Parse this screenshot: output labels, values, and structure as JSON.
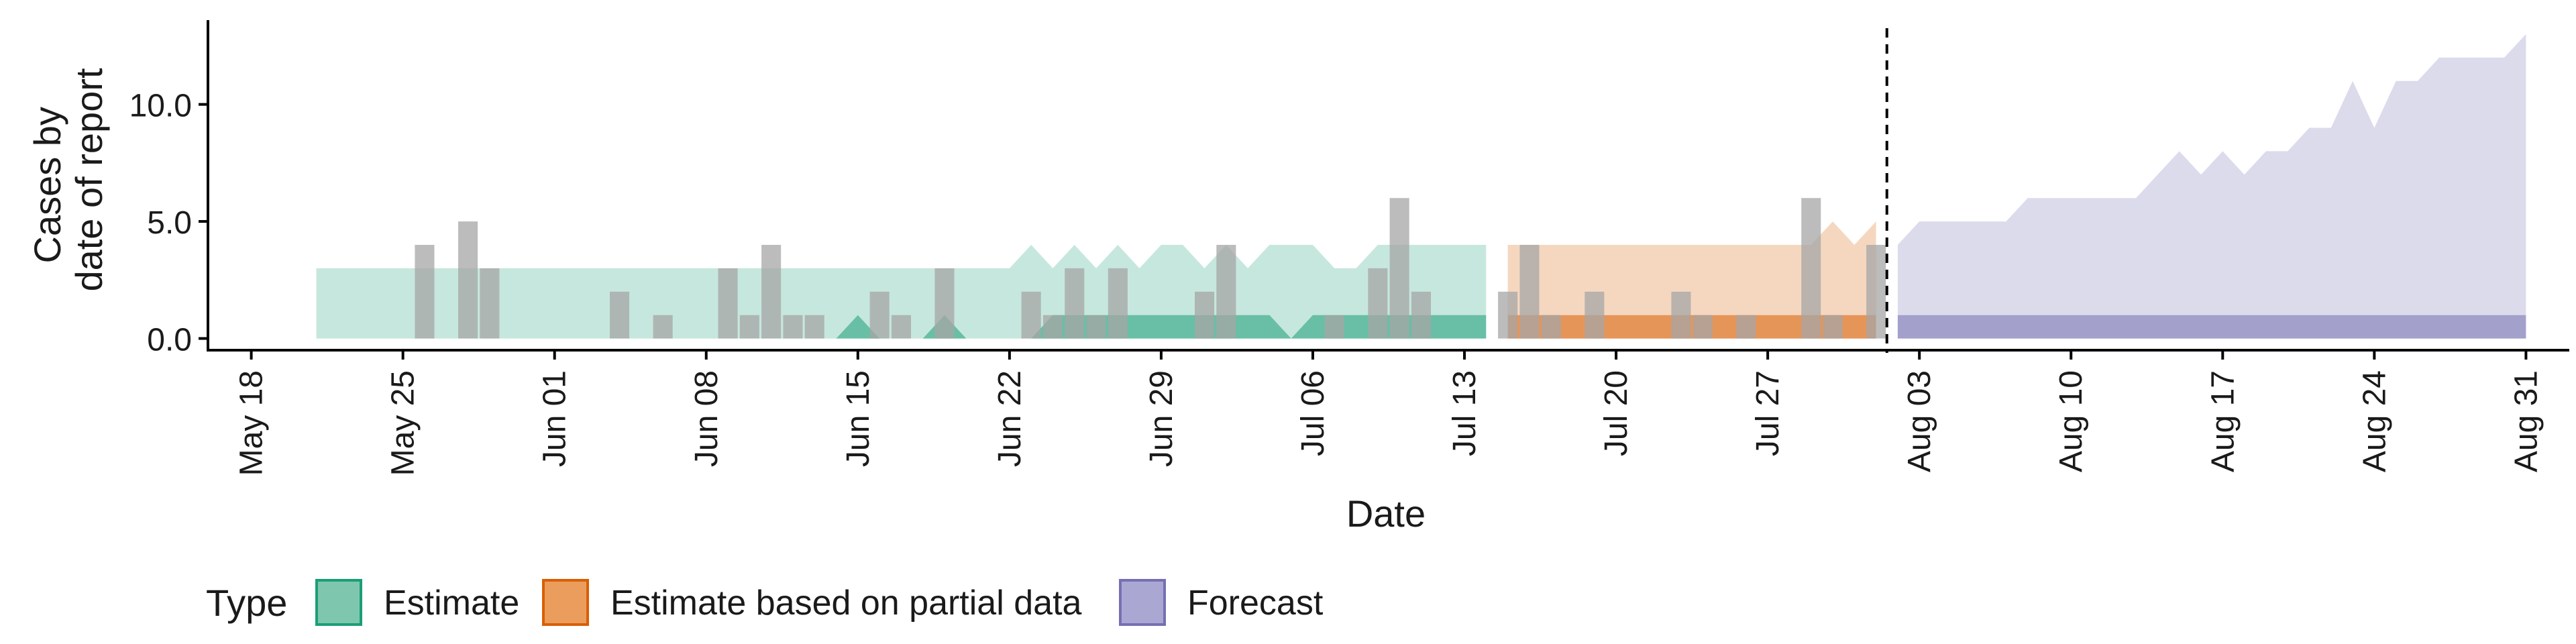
{
  "chart_data": {
    "type": "area",
    "xlabel": "Date",
    "ylabel_lines": [
      "Cases by",
      "date of report"
    ],
    "x_ticks": [
      "May 18",
      "May 25",
      "Jun 01",
      "Jun 08",
      "Jun 15",
      "Jun 22",
      "Jun 29",
      "Jul 06",
      "Jul 13",
      "Jul 20",
      "Jul 27",
      "Aug 03",
      "Aug 10",
      "Aug 17",
      "Aug 24",
      "Aug 31"
    ],
    "y_ticks": [
      "0.0",
      "5.0",
      "10.0"
    ],
    "ylim": [
      -0.5,
      13.6
    ],
    "xlim": [
      "2020-05-16",
      "2020-09-02"
    ],
    "forecast_date": "2020-08-01",
    "legend": {
      "title": "Type",
      "position": "bottom-left",
      "items": [
        {
          "label": "Estimate",
          "fill": "#7fc6ae",
          "stroke": "#1b9e77"
        },
        {
          "label": "Estimate based on partial data",
          "fill": "#eb9d5e",
          "stroke": "#d95f02"
        },
        {
          "label": "Forecast",
          "fill": "#aaa7d3",
          "stroke": "#7570b3"
        }
      ]
    },
    "series": [
      {
        "name": "Estimate",
        "color": "#1b9e77",
        "x": [
          "2020-05-21",
          "2020-05-22",
          "2020-05-23",
          "2020-05-24",
          "2020-05-25",
          "2020-05-26",
          "2020-05-27",
          "2020-05-28",
          "2020-05-29",
          "2020-05-30",
          "2020-05-31",
          "2020-06-01",
          "2020-06-02",
          "2020-06-03",
          "2020-06-04",
          "2020-06-05",
          "2020-06-06",
          "2020-06-07",
          "2020-06-08",
          "2020-06-09",
          "2020-06-10",
          "2020-06-11",
          "2020-06-12",
          "2020-06-13",
          "2020-06-14",
          "2020-06-15",
          "2020-06-16",
          "2020-06-17",
          "2020-06-18",
          "2020-06-19",
          "2020-06-20",
          "2020-06-21",
          "2020-06-22",
          "2020-06-23",
          "2020-06-24",
          "2020-06-25",
          "2020-06-26",
          "2020-06-27",
          "2020-06-28",
          "2020-06-29",
          "2020-06-30",
          "2020-07-01",
          "2020-07-02",
          "2020-07-03",
          "2020-07-04",
          "2020-07-05",
          "2020-07-06",
          "2020-07-07",
          "2020-07-08",
          "2020-07-09",
          "2020-07-10",
          "2020-07-11",
          "2020-07-12",
          "2020-07-13",
          "2020-07-14"
        ],
        "upper_90": [
          3,
          3,
          3,
          3,
          3,
          3,
          3,
          3,
          3,
          3,
          3,
          3,
          3,
          3,
          3,
          3,
          3,
          3,
          3,
          3,
          3,
          3,
          3,
          3,
          3,
          3,
          3,
          3,
          3,
          3,
          3,
          3,
          3,
          4,
          3,
          4,
          3,
          4,
          3,
          4,
          4,
          3,
          4,
          3,
          4,
          4,
          4,
          3,
          3,
          4,
          4,
          4,
          4,
          4,
          4
        ],
        "lower_90": [
          0,
          0,
          0,
          0,
          0,
          0,
          0,
          0,
          0,
          0,
          0,
          0,
          0,
          0,
          0,
          0,
          0,
          0,
          0,
          0,
          0,
          0,
          0,
          0,
          0,
          0,
          0,
          0,
          0,
          0,
          0,
          0,
          0,
          0,
          0,
          0,
          0,
          0,
          0,
          0,
          0,
          0,
          0,
          0,
          0,
          0,
          0,
          0,
          0,
          0,
          0,
          0,
          0,
          0,
          0
        ],
        "upper_50": [
          0,
          0,
          0,
          0,
          0,
          0,
          0,
          0,
          0,
          0,
          0,
          0,
          0,
          0,
          0,
          0,
          0,
          0,
          0,
          0,
          0,
          0,
          0,
          0,
          0,
          1,
          0,
          0,
          0,
          1,
          0,
          0,
          0,
          0,
          1,
          1,
          1,
          1,
          1,
          1,
          1,
          1,
          1,
          1,
          1,
          0,
          1,
          1,
          1,
          1,
          1,
          1,
          1,
          1,
          1
        ],
        "lower_50": [
          0,
          0,
          0,
          0,
          0,
          0,
          0,
          0,
          0,
          0,
          0,
          0,
          0,
          0,
          0,
          0,
          0,
          0,
          0,
          0,
          0,
          0,
          0,
          0,
          0,
          0,
          0,
          0,
          0,
          0,
          0,
          0,
          0,
          0,
          0,
          0,
          0,
          0,
          0,
          0,
          0,
          0,
          0,
          0,
          0,
          0,
          0,
          0,
          0,
          0,
          0,
          0,
          0,
          0,
          0
        ]
      },
      {
        "name": "Estimate based on partial data",
        "color": "#d95f02",
        "x": [
          "2020-07-15",
          "2020-07-16",
          "2020-07-17",
          "2020-07-18",
          "2020-07-19",
          "2020-07-20",
          "2020-07-21",
          "2020-07-22",
          "2020-07-23",
          "2020-07-24",
          "2020-07-25",
          "2020-07-26",
          "2020-07-27",
          "2020-07-28",
          "2020-07-29",
          "2020-07-30",
          "2020-07-31",
          "2020-08-01"
        ],
        "upper_90": [
          4,
          4,
          4,
          4,
          4,
          4,
          4,
          4,
          4,
          4,
          4,
          4,
          4,
          4,
          4,
          5,
          4,
          5
        ],
        "lower_90": [
          0,
          0,
          0,
          0,
          0,
          0,
          0,
          0,
          0,
          0,
          0,
          0,
          0,
          0,
          0,
          0,
          0,
          0
        ],
        "upper_50": [
          1,
          1,
          1,
          1,
          1,
          1,
          1,
          1,
          1,
          1,
          1,
          1,
          1,
          1,
          1,
          1,
          1,
          1
        ],
        "lower_50": [
          0,
          0,
          0,
          0,
          0,
          0,
          0,
          0,
          0,
          0,
          0,
          0,
          0,
          0,
          0,
          0,
          0,
          0
        ]
      },
      {
        "name": "Forecast",
        "color": "#7570b3",
        "x": [
          "2020-08-02",
          "2020-08-03",
          "2020-08-04",
          "2020-08-05",
          "2020-08-06",
          "2020-08-07",
          "2020-08-08",
          "2020-08-09",
          "2020-08-10",
          "2020-08-11",
          "2020-08-12",
          "2020-08-13",
          "2020-08-14",
          "2020-08-15",
          "2020-08-16",
          "2020-08-17",
          "2020-08-18",
          "2020-08-19",
          "2020-08-20",
          "2020-08-21",
          "2020-08-22",
          "2020-08-23",
          "2020-08-24",
          "2020-08-25",
          "2020-08-26",
          "2020-08-27",
          "2020-08-28",
          "2020-08-29",
          "2020-08-30",
          "2020-08-31"
        ],
        "upper_90": [
          4,
          5,
          5,
          5,
          5,
          5,
          6,
          6,
          6,
          6,
          6,
          6,
          7,
          8,
          7,
          8,
          7,
          8,
          8,
          9,
          9,
          11,
          9,
          11,
          11,
          12,
          12,
          12,
          12,
          13
        ],
        "lower_90": [
          0,
          0,
          0,
          0,
          0,
          0,
          0,
          0,
          0,
          0,
          0,
          0,
          0,
          0,
          0,
          0,
          0,
          0,
          0,
          0,
          0,
          0,
          0,
          0,
          0,
          0,
          0,
          0,
          0,
          0
        ],
        "upper_50": [
          1,
          1,
          1,
          1,
          1,
          1,
          1,
          1,
          1,
          1,
          1,
          1,
          1,
          1,
          1,
          1,
          1,
          1,
          1,
          1,
          1,
          1,
          1,
          1,
          1,
          1,
          1,
          1,
          1,
          1
        ],
        "lower_50": [
          0,
          0,
          0,
          0,
          0,
          0,
          0,
          0,
          0,
          0,
          0,
          0,
          0,
          0,
          0,
          0,
          0,
          0,
          0,
          0,
          0,
          0,
          0,
          0,
          0,
          0,
          0,
          0,
          0,
          0
        ]
      }
    ],
    "reported_cases": {
      "color": "#a6a6a6",
      "points": [
        {
          "x": "2020-05-26",
          "y": 4
        },
        {
          "x": "2020-05-28",
          "y": 5
        },
        {
          "x": "2020-05-29",
          "y": 3
        },
        {
          "x": "2020-06-04",
          "y": 2
        },
        {
          "x": "2020-06-06",
          "y": 1
        },
        {
          "x": "2020-06-09",
          "y": 3
        },
        {
          "x": "2020-06-10",
          "y": 1
        },
        {
          "x": "2020-06-11",
          "y": 4
        },
        {
          "x": "2020-06-12",
          "y": 1
        },
        {
          "x": "2020-06-13",
          "y": 1
        },
        {
          "x": "2020-06-16",
          "y": 2
        },
        {
          "x": "2020-06-17",
          "y": 1
        },
        {
          "x": "2020-06-19",
          "y": 3
        },
        {
          "x": "2020-06-23",
          "y": 2
        },
        {
          "x": "2020-06-24",
          "y": 1
        },
        {
          "x": "2020-06-25",
          "y": 3
        },
        {
          "x": "2020-06-26",
          "y": 1
        },
        {
          "x": "2020-06-27",
          "y": 3
        },
        {
          "x": "2020-07-01",
          "y": 2
        },
        {
          "x": "2020-07-02",
          "y": 4
        },
        {
          "x": "2020-07-07",
          "y": 1
        },
        {
          "x": "2020-07-09",
          "y": 3
        },
        {
          "x": "2020-07-10",
          "y": 6
        },
        {
          "x": "2020-07-11",
          "y": 2
        },
        {
          "x": "2020-07-15",
          "y": 2
        },
        {
          "x": "2020-07-16",
          "y": 4
        },
        {
          "x": "2020-07-17",
          "y": 1
        },
        {
          "x": "2020-07-19",
          "y": 2
        },
        {
          "x": "2020-07-23",
          "y": 2
        },
        {
          "x": "2020-07-24",
          "y": 1
        },
        {
          "x": "2020-07-26",
          "y": 1
        },
        {
          "x": "2020-07-29",
          "y": 6
        },
        {
          "x": "2020-07-30",
          "y": 1
        },
        {
          "x": "2020-08-01",
          "y": 4
        }
      ]
    },
    "grid": false
  }
}
